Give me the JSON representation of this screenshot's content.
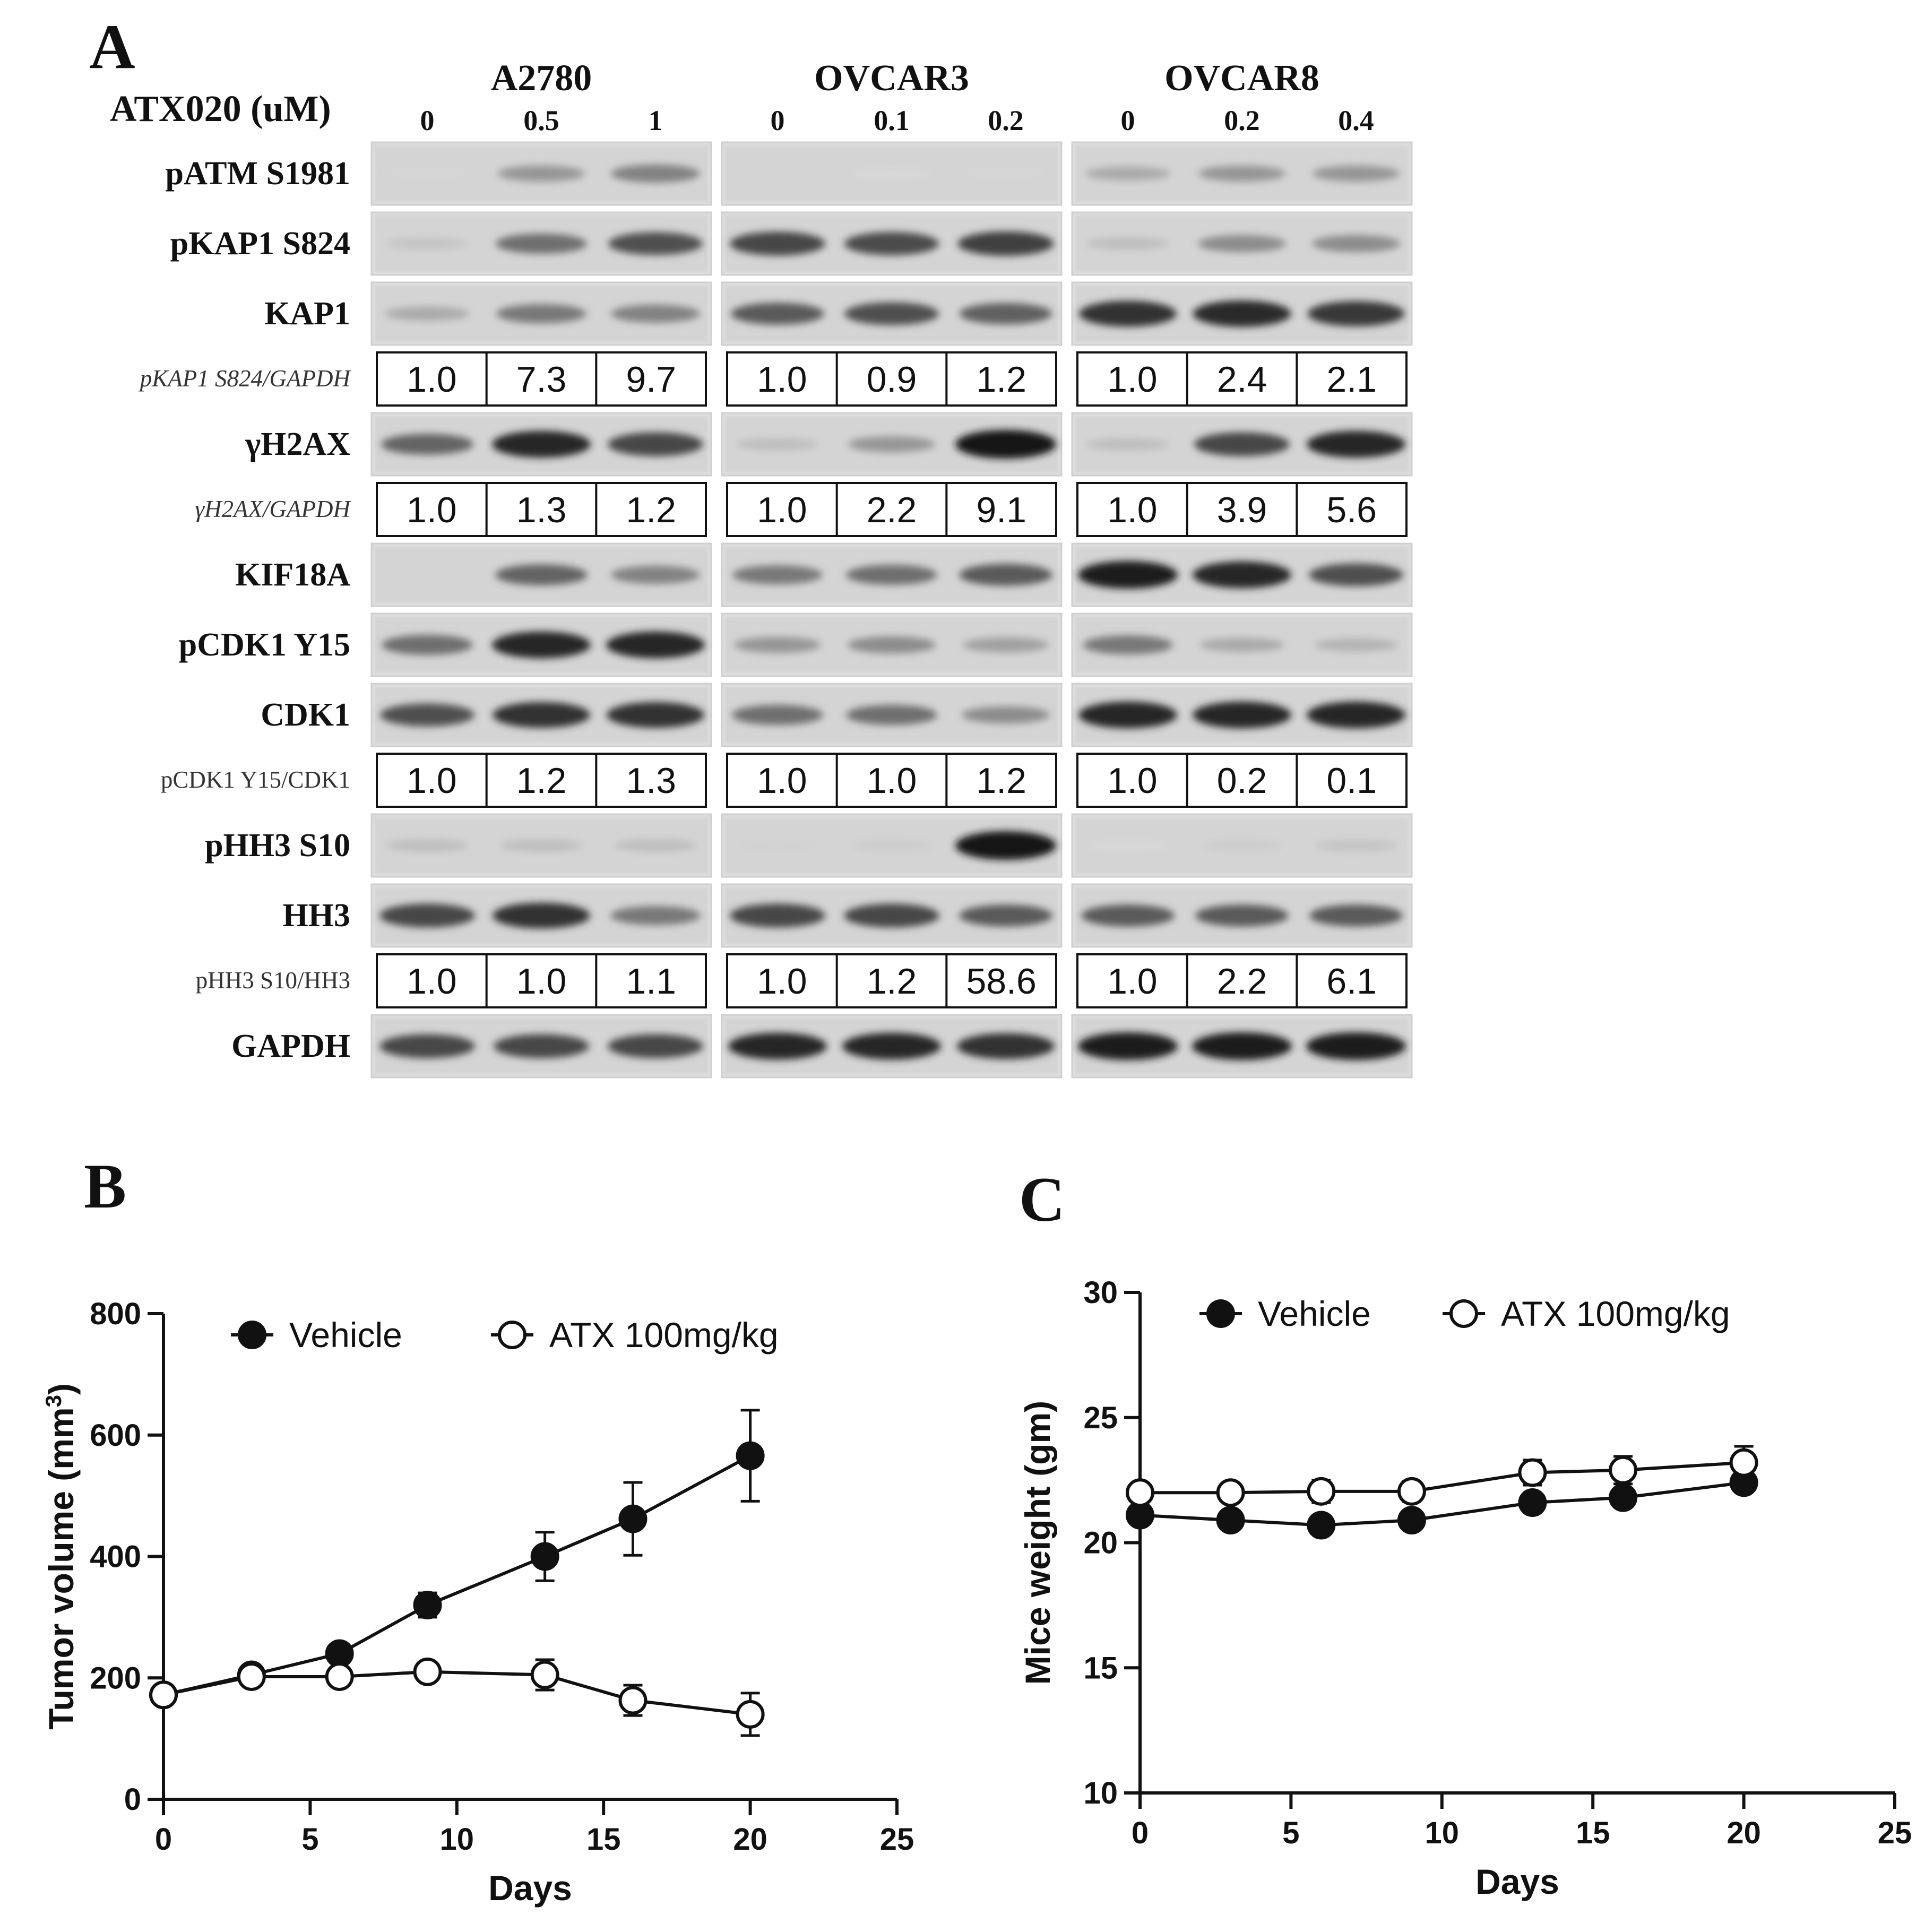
{
  "panels": {
    "a": "A",
    "b": "B",
    "c": "C"
  },
  "western_blot": {
    "treatment_label": "ATX020 (uM)",
    "cell_lines": [
      {
        "name": "A2780",
        "concentrations": [
          "0",
          "0.5",
          "1"
        ]
      },
      {
        "name": "OVCAR3",
        "concentrations": [
          "0",
          "0.1",
          "0.2"
        ]
      },
      {
        "name": "OVCAR8",
        "concentrations": [
          "0",
          "0.2",
          "0.4"
        ]
      }
    ],
    "rows": [
      {
        "type": "blot",
        "label": "pATM S1981",
        "intensity": [
          [
            0.03,
            0.35,
            0.45
          ],
          [
            0.0,
            0.02,
            0.03
          ],
          [
            0.25,
            0.35,
            0.35
          ]
        ]
      },
      {
        "type": "blot",
        "label": "pKAP1 S824",
        "intensity": [
          [
            0.12,
            0.55,
            0.7
          ],
          [
            0.75,
            0.72,
            0.78
          ],
          [
            0.15,
            0.4,
            0.4
          ]
        ]
      },
      {
        "type": "blot",
        "label": "KAP1",
        "intensity": [
          [
            0.25,
            0.5,
            0.45
          ],
          [
            0.65,
            0.7,
            0.62
          ],
          [
            0.85,
            0.88,
            0.82
          ]
        ]
      },
      {
        "type": "quant",
        "label": "pKAP1 S824/GAPDH",
        "italic": true,
        "values": [
          [
            "1.0",
            "7.3",
            "9.7"
          ],
          [
            "1.0",
            "0.9",
            "1.2"
          ],
          [
            "1.0",
            "2.4",
            "2.1"
          ]
        ]
      },
      {
        "type": "blot",
        "label": "γH2AX",
        "intensity": [
          [
            0.6,
            0.9,
            0.75
          ],
          [
            0.15,
            0.35,
            1.0
          ],
          [
            0.15,
            0.75,
            0.9
          ]
        ]
      },
      {
        "type": "quant",
        "label": "γH2AX/GAPDH",
        "italic": true,
        "values": [
          [
            "1.0",
            "1.3",
            "1.2"
          ],
          [
            "1.0",
            "2.2",
            "9.1"
          ],
          [
            "1.0",
            "3.9",
            "5.6"
          ]
        ]
      },
      {
        "type": "blot",
        "label": "KIF18A",
        "intensity": [
          [
            0.0,
            0.6,
            0.45
          ],
          [
            0.5,
            0.55,
            0.65
          ],
          [
            0.95,
            0.9,
            0.7
          ]
        ]
      },
      {
        "type": "blot",
        "label": "pCDK1 Y15",
        "intensity": [
          [
            0.55,
            0.9,
            0.9
          ],
          [
            0.35,
            0.4,
            0.3
          ],
          [
            0.5,
            0.25,
            0.2
          ]
        ]
      },
      {
        "type": "blot",
        "label": "CDK1",
        "intensity": [
          [
            0.7,
            0.85,
            0.85
          ],
          [
            0.55,
            0.55,
            0.4
          ],
          [
            0.9,
            0.9,
            0.9
          ]
        ]
      },
      {
        "type": "quant",
        "label": "pCDK1 Y15/CDK1",
        "italic": false,
        "values": [
          [
            "1.0",
            "1.2",
            "1.3"
          ],
          [
            "1.0",
            "1.0",
            "1.2"
          ],
          [
            "1.0",
            "0.2",
            "0.1"
          ]
        ]
      },
      {
        "type": "blot",
        "label": "pHH3 S10",
        "intensity": [
          [
            0.15,
            0.15,
            0.15
          ],
          [
            0.05,
            0.08,
            1.0
          ],
          [
            0.02,
            0.08,
            0.12
          ]
        ]
      },
      {
        "type": "blot",
        "label": "HH3",
        "intensity": [
          [
            0.75,
            0.85,
            0.5
          ],
          [
            0.75,
            0.75,
            0.65
          ],
          [
            0.65,
            0.65,
            0.65
          ]
        ]
      },
      {
        "type": "quant",
        "label": "pHH3 S10/HH3",
        "italic": false,
        "values": [
          [
            "1.0",
            "1.0",
            "1.1"
          ],
          [
            "1.0",
            "1.2",
            "58.6"
          ],
          [
            "1.0",
            "2.2",
            "6.1"
          ]
        ]
      },
      {
        "type": "blot",
        "label": "GAPDH",
        "intensity": [
          [
            0.75,
            0.75,
            0.75
          ],
          [
            0.9,
            0.9,
            0.85
          ],
          [
            0.95,
            0.95,
            0.95
          ]
        ]
      }
    ]
  },
  "chart_data": [
    {
      "type": "line",
      "panel": "B",
      "xlabel": "Days",
      "ylabel": "Tumor volume  (mm3)",
      "ylabel_base": "Tumor volume  (mm",
      "ylabel_sup": "3",
      "ylabel_tail": ")",
      "xlim": [
        0,
        25
      ],
      "ylim": [
        0,
        800
      ],
      "xticks": [
        0,
        5,
        10,
        15,
        20,
        25
      ],
      "yticks": [
        0,
        200,
        400,
        600,
        800
      ],
      "grid": false,
      "legend": "top",
      "series": [
        {
          "name": "Vehicle",
          "marker": "filled-circle",
          "x": [
            0,
            3,
            6,
            9,
            13,
            16,
            20
          ],
          "y": [
            172,
            205,
            240,
            320,
            400,
            462,
            566
          ],
          "err": [
            10,
            10,
            12,
            20,
            40,
            60,
            75
          ]
        },
        {
          "name": "ATX 100mg/kg",
          "marker": "open-circle",
          "x": [
            0,
            3,
            6,
            9,
            13,
            16,
            20
          ],
          "y": [
            172,
            202,
            202,
            210,
            205,
            163,
            140
          ],
          "err": [
            10,
            10,
            10,
            10,
            25,
            25,
            35
          ]
        }
      ]
    },
    {
      "type": "line",
      "panel": "C",
      "xlabel": "Days",
      "ylabel": "Mice weight  (gm)",
      "xlim": [
        0,
        25
      ],
      "ylim": [
        10,
        30
      ],
      "xticks": [
        0,
        5,
        10,
        15,
        20,
        25
      ],
      "yticks": [
        10,
        15,
        20,
        25,
        30
      ],
      "grid": false,
      "legend": "top",
      "series": [
        {
          "name": "Vehicle",
          "marker": "filled-circle",
          "x": [
            0,
            3,
            6,
            9,
            13,
            16,
            20
          ],
          "y": [
            21.1,
            20.9,
            20.7,
            20.9,
            21.6,
            21.8,
            22.4
          ],
          "err": [
            0.25,
            0.2,
            0.2,
            0.2,
            0.25,
            0.3,
            0.3
          ]
        },
        {
          "name": "ATX 100mg/kg",
          "marker": "open-circle",
          "x": [
            0,
            3,
            6,
            9,
            13,
            16,
            20
          ],
          "y": [
            22.0,
            22.0,
            22.05,
            22.05,
            22.8,
            22.9,
            23.2
          ],
          "err": [
            0.3,
            0.3,
            0.45,
            0.4,
            0.5,
            0.55,
            0.65
          ]
        }
      ]
    }
  ]
}
